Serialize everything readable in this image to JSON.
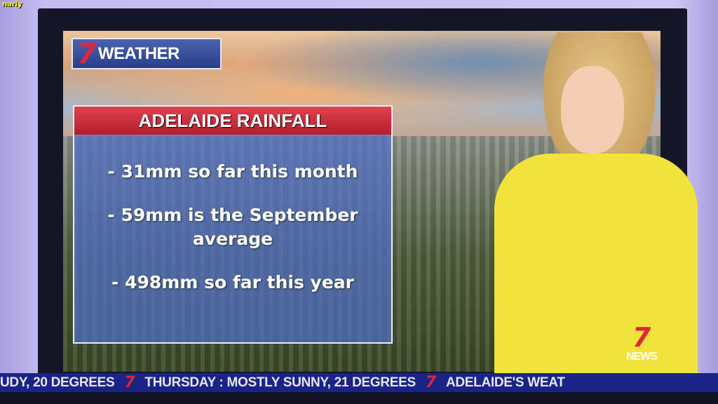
{
  "overlay_tag": "narly",
  "logo": {
    "mark": "7",
    "text": "WEATHER"
  },
  "panel": {
    "title": "ADELAIDE RAINFALL",
    "bullets": [
      "- 31mm so far this month",
      "- 59mm is the September average",
      "- 498mm so far this year"
    ]
  },
  "channel_bug": {
    "mark": "7",
    "text": "NEWS"
  },
  "ticker": {
    "items": [
      "UDY, 20 DEGREES",
      "THURSDAY :  MOSTLY SUNNY, 21 DEGREES",
      "ADELAIDE'S WEAT"
    ],
    "separator": "7"
  },
  "colors": {
    "brand_red": "#e0263a",
    "ticker_blue": "#1a2386",
    "panel_blue": "#506ec8"
  }
}
